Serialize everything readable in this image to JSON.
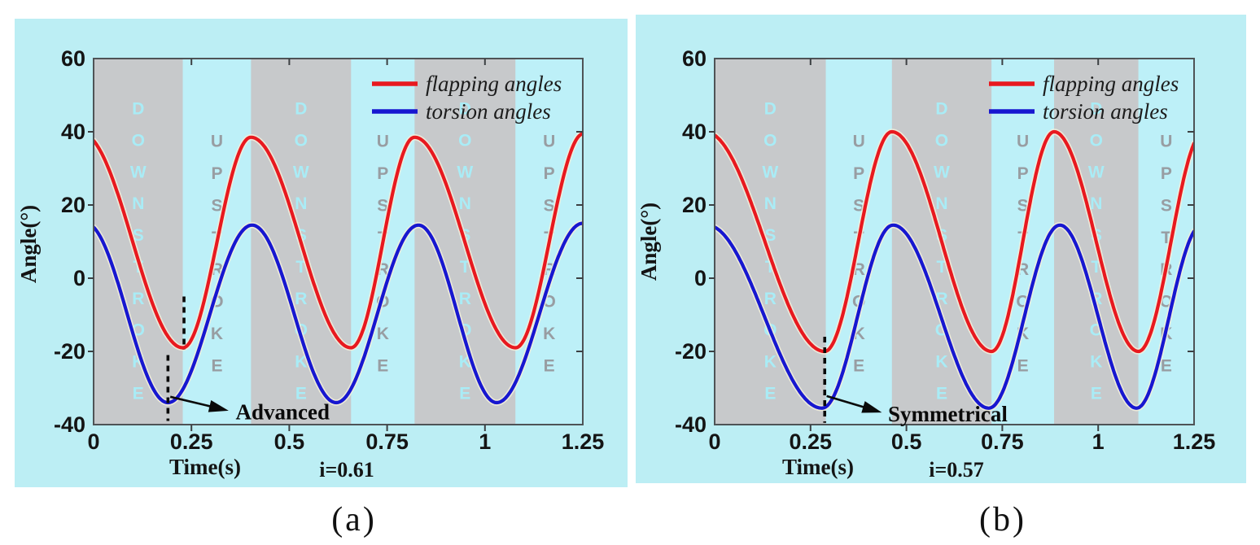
{
  "figure": {
    "background": "#ffffff",
    "panel_background": "#bceef4",
    "axis_color": "#3c4043",
    "text_color": "#141414"
  },
  "chart_data": [
    {
      "type": "line",
      "caption": "(a)",
      "param_label": "i=0.61",
      "x": {
        "label": "Time(s)",
        "lim": [
          0,
          1.25
        ],
        "ticks": [
          {
            "v": 0,
            "label": "0"
          },
          {
            "v": 0.25,
            "label": "0.25"
          },
          {
            "v": 0.5,
            "label": "0.5"
          },
          {
            "v": 0.75,
            "label": "0.75"
          },
          {
            "v": 1,
            "label": "1"
          },
          {
            "v": 1.25,
            "label": "1.25"
          }
        ]
      },
      "y": {
        "label": "Angle(°)",
        "lim": [
          -40,
          60
        ],
        "ticks": [
          {
            "v": 60,
            "label": "60"
          },
          {
            "v": 40,
            "label": "40"
          },
          {
            "v": 20,
            "label": "20"
          },
          {
            "v": 0,
            "label": "0"
          },
          {
            "v": -20,
            "label": "-20"
          },
          {
            "v": -40,
            "label": "-40"
          }
        ]
      },
      "legend": [
        {
          "label": "flapping angles",
          "color": "#e8191f"
        },
        {
          "label": "torsion angles",
          "color": "#1717d0"
        }
      ],
      "series": [
        {
          "name": "flapping angles",
          "color": "#e8191f",
          "extrema": [
            [
              -0.03,
              39.5
            ],
            [
              0.228,
              -19
            ],
            [
              0.402,
              38.5
            ],
            [
              0.658,
              -19
            ],
            [
              0.82,
              38.5
            ],
            [
              1.078,
              -19
            ],
            [
              1.252,
              39.5
            ]
          ]
        },
        {
          "name": "torsion angles",
          "color": "#1717d0",
          "extrema": [
            [
              -0.02,
              15
            ],
            [
              0.19,
              -34
            ],
            [
              0.405,
              14.5
            ],
            [
              0.62,
              -34
            ],
            [
              0.83,
              14.5
            ],
            [
              1.03,
              -34
            ],
            [
              1.25,
              15
            ]
          ]
        }
      ],
      "bands": {
        "downstroke": {
          "label": "DOWNSTROKE",
          "fill": "#c7c9cb",
          "letter_color": "#a9ecf6",
          "intervals": [
            [
              0,
              0.228
            ],
            [
              0.402,
              0.658
            ],
            [
              0.82,
              1.078
            ]
          ]
        },
        "upstroke": {
          "label": "UPSTROKE",
          "fill": "#bdf0f8",
          "letter_color": "#989da2",
          "intervals": [
            [
              0.228,
              0.402
            ],
            [
              0.658,
              0.82
            ],
            [
              1.078,
              1.25
            ]
          ]
        }
      },
      "dashed_lines": [
        {
          "t": 0.19,
          "from": -21,
          "to": -39
        },
        {
          "t": 0.231,
          "from": -5,
          "to": -19.5
        }
      ],
      "annotation": {
        "text": "Advanced",
        "arrow_from": [
          0.196,
          -32.4
        ],
        "arrow_to": [
          0.345,
          -36.2
        ],
        "text_at": [
          0.363,
          -36.5
        ]
      }
    },
    {
      "type": "line",
      "caption": "(b)",
      "param_label": "i=0.57",
      "x": {
        "label": "Time(s)",
        "lim": [
          0,
          1.25
        ],
        "ticks": [
          {
            "v": 0,
            "label": "0"
          },
          {
            "v": 0.25,
            "label": "0.25"
          },
          {
            "v": 0.5,
            "label": "0.5"
          },
          {
            "v": 0.75,
            "label": "0.75"
          },
          {
            "v": 1,
            "label": "1"
          },
          {
            "v": 1.25,
            "label": "1.25"
          }
        ]
      },
      "y": {
        "label": "Angle(°)",
        "lim": [
          -40,
          60
        ],
        "ticks": [
          {
            "v": 60,
            "label": "60"
          },
          {
            "v": 40,
            "label": "40"
          },
          {
            "v": 20,
            "label": "20"
          },
          {
            "v": 0,
            "label": "0"
          },
          {
            "v": -20,
            "label": "-20"
          },
          {
            "v": -40,
            "label": "-40"
          }
        ]
      },
      "legend": [
        {
          "label": "flapping angles",
          "color": "#e8191f"
        },
        {
          "label": "torsion angles",
          "color": "#1717d0"
        }
      ],
      "series": [
        {
          "name": "flapping angles",
          "color": "#e8191f",
          "extrema": [
            [
              -0.025,
              40
            ],
            [
              0.287,
              -20
            ],
            [
              0.462,
              40
            ],
            [
              0.722,
              -20
            ],
            [
              0.885,
              40
            ],
            [
              1.105,
              -20
            ],
            [
              1.275,
              40
            ]
          ]
        },
        {
          "name": "torsion angles",
          "color": "#1717d0",
          "extrema": [
            [
              -0.02,
              14.5
            ],
            [
              0.28,
              -35.5
            ],
            [
              0.465,
              14.5
            ],
            [
              0.715,
              -35.5
            ],
            [
              0.9,
              14.5
            ],
            [
              1.1,
              -35.5
            ],
            [
              1.27,
              14.5
            ]
          ]
        }
      ],
      "bands": {
        "downstroke": {
          "label": "DOWNSTROKE",
          "fill": "#c7c9cb",
          "letter_color": "#a9ecf6",
          "intervals": [
            [
              0,
              0.29
            ],
            [
              0.462,
              0.722
            ],
            [
              0.885,
              1.105
            ]
          ]
        },
        "upstroke": {
          "label": "UPSTROKE",
          "fill": "#bdf0f8",
          "letter_color": "#989da2",
          "intervals": [
            [
              0.29,
              0.462
            ],
            [
              0.722,
              0.885
            ],
            [
              1.105,
              1.25
            ]
          ]
        }
      },
      "dashed_lines": [
        {
          "t": 0.287,
          "from": -16,
          "to": -39.5
        }
      ],
      "annotation": {
        "text": "Symmetrical",
        "arrow_from": [
          0.292,
          -32.2
        ],
        "arrow_to": [
          0.436,
          -36.7
        ],
        "text_at": [
          0.452,
          -37.1
        ]
      }
    }
  ]
}
